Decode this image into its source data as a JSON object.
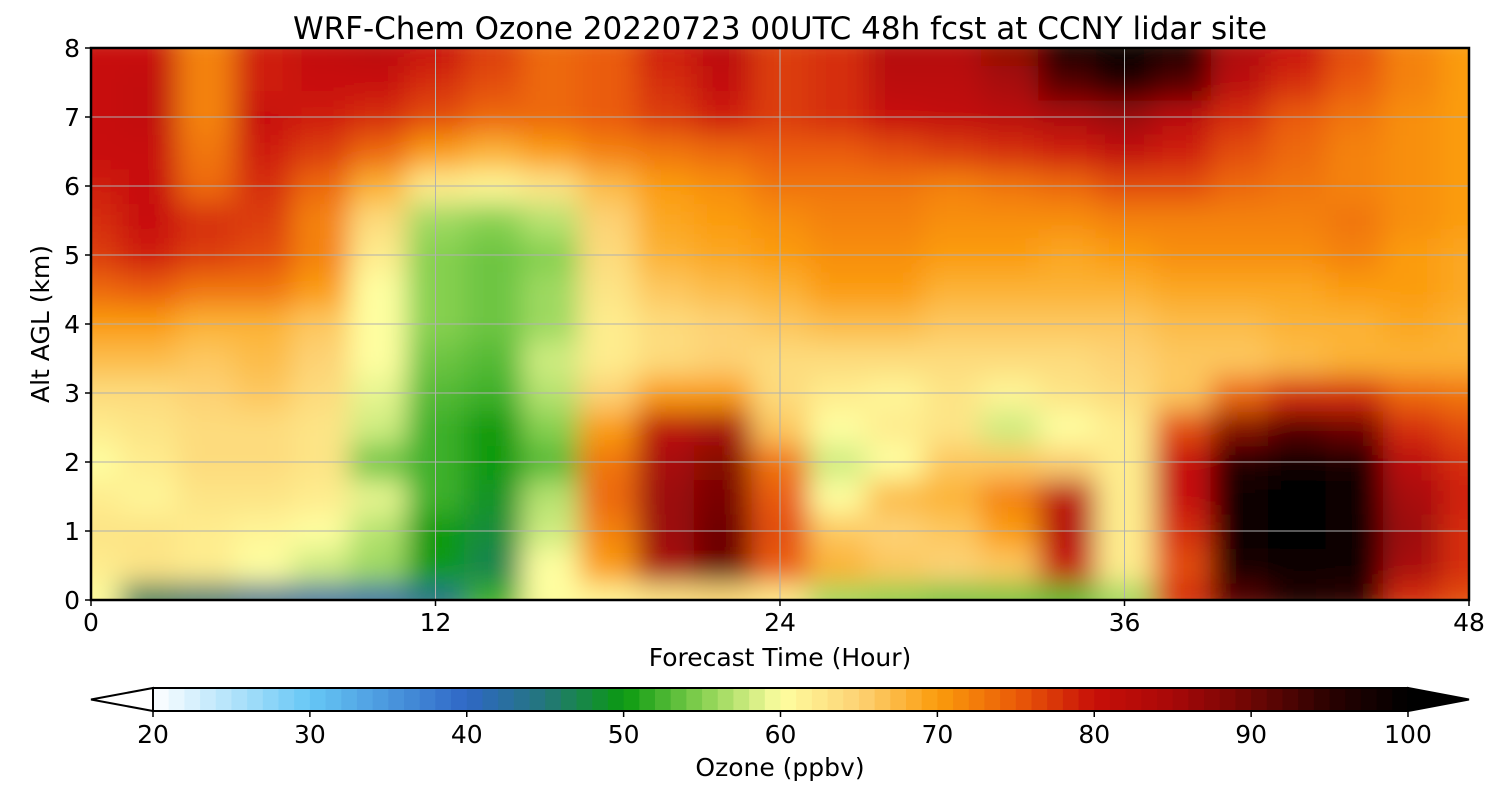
{
  "chart_data": {
    "type": "heatmap",
    "title": "WRF-Chem Ozone  20220723 00UTC 48h fcst at CCNY lidar site",
    "xlabel": "Forecast Time (Hour)",
    "ylabel": "Alt AGL (km)",
    "xlim": [
      0,
      48
    ],
    "ylim": [
      0,
      8
    ],
    "xticks": [
      "0",
      "12",
      "24",
      "36",
      "48"
    ],
    "yticks": [
      "0",
      "1",
      "2",
      "3",
      "4",
      "5",
      "6",
      "7",
      "8"
    ],
    "grid": true,
    "colorbar": {
      "label": "Ozone  (ppbv)",
      "range": [
        20,
        100
      ],
      "ticks": [
        "20",
        "30",
        "40",
        "50",
        "60",
        "70",
        "80",
        "90",
        "100"
      ],
      "extend": "both",
      "colors": [
        {
          "v": 20,
          "c": "#ffffff"
        },
        {
          "v": 30,
          "c": "#66c7f5"
        },
        {
          "v": 40,
          "c": "#2f67c6"
        },
        {
          "v": 45,
          "c": "#23767a"
        },
        {
          "v": 50,
          "c": "#0a9a10"
        },
        {
          "v": 55,
          "c": "#86d050"
        },
        {
          "v": 60,
          "c": "#fefea0"
        },
        {
          "v": 65,
          "c": "#fdd274"
        },
        {
          "v": 70,
          "c": "#fb9c0c"
        },
        {
          "v": 75,
          "c": "#ea5c08"
        },
        {
          "v": 80,
          "c": "#c80f08"
        },
        {
          "v": 85,
          "c": "#a80808"
        },
        {
          "v": 90,
          "c": "#6d0604"
        },
        {
          "v": 95,
          "c": "#2a0101"
        },
        {
          "v": 100,
          "c": "#000000"
        }
      ]
    },
    "x_hours": [
      0,
      2,
      4,
      6,
      8,
      10,
      12,
      14,
      16,
      18,
      20,
      22,
      24,
      26,
      28,
      30,
      32,
      34,
      36,
      38,
      40,
      42,
      44,
      46,
      48
    ],
    "y_km": [
      0,
      0.5,
      1,
      1.5,
      2,
      2.5,
      3,
      3.5,
      4,
      4.5,
      5,
      5.5,
      6,
      6.5,
      7,
      7.5,
      8
    ],
    "ozone_ppbv": [
      [
        60,
        46,
        45,
        43,
        42,
        42,
        44,
        52,
        60,
        61,
        63,
        64,
        62,
        56,
        55,
        54,
        54,
        53,
        56,
        78,
        92,
        96,
        95,
        78,
        76
      ],
      [
        62,
        63,
        62,
        60,
        58,
        56,
        50,
        47,
        60,
        70,
        85,
        90,
        75,
        68,
        66,
        65,
        66,
        80,
        62,
        76,
        97,
        99,
        98,
        85,
        78
      ],
      [
        63,
        63,
        62,
        61,
        60,
        57,
        50,
        48,
        58,
        72,
        86,
        90,
        76,
        66,
        65,
        66,
        70,
        83,
        62,
        78,
        98,
        100,
        99,
        86,
        78
      ],
      [
        62,
        61,
        63,
        63,
        62,
        59,
        52,
        49,
        57,
        74,
        86,
        89,
        75,
        60,
        67,
        68,
        72,
        82,
        62,
        80,
        99,
        100,
        98,
        85,
        79
      ],
      [
        60,
        62,
        64,
        64,
        63,
        54,
        52,
        50,
        53,
        73,
        85,
        88,
        73,
        58,
        60,
        66,
        66,
        65,
        62,
        80,
        96,
        99,
        97,
        82,
        78
      ],
      [
        62,
        63,
        64,
        64,
        63,
        58,
        52,
        50,
        55,
        70,
        82,
        85,
        66,
        60,
        62,
        63,
        58,
        60,
        62,
        76,
        88,
        92,
        90,
        78,
        76
      ],
      [
        64,
        64,
        65,
        66,
        64,
        59,
        53,
        52,
        57,
        65,
        70,
        70,
        64,
        62,
        61,
        63,
        61,
        63,
        64,
        66,
        74,
        78,
        78,
        74,
        73
      ],
      [
        67,
        67,
        66,
        67,
        65,
        60,
        54,
        53,
        58,
        62,
        64,
        65,
        64,
        64,
        64,
        64,
        64,
        64,
        65,
        66,
        66,
        67,
        68,
        68,
        68
      ],
      [
        70,
        70,
        68,
        68,
        66,
        60,
        55,
        54,
        56,
        62,
        64,
        65,
        66,
        67,
        67,
        66,
        66,
        66,
        66,
        67,
        67,
        68,
        68,
        69,
        68
      ],
      [
        74,
        75,
        73,
        73,
        70,
        60,
        55,
        54,
        56,
        63,
        66,
        67,
        68,
        70,
        70,
        68,
        68,
        68,
        68,
        69,
        69,
        69,
        70,
        70,
        69
      ],
      [
        77,
        79,
        77,
        76,
        72,
        62,
        55,
        54,
        55,
        64,
        68,
        69,
        70,
        71,
        71,
        70,
        70,
        69,
        70,
        71,
        71,
        71,
        72,
        70,
        69
      ],
      [
        78,
        80,
        78,
        77,
        72,
        64,
        56,
        55,
        57,
        65,
        69,
        70,
        71,
        72,
        72,
        71,
        71,
        71,
        72,
        72,
        72,
        72,
        73,
        71,
        70
      ],
      [
        79,
        80,
        74,
        78,
        74,
        68,
        62,
        61,
        63,
        67,
        70,
        71,
        73,
        73,
        73,
        72,
        73,
        74,
        76,
        76,
        74,
        73,
        72,
        71,
        70
      ],
      [
        80,
        80,
        73,
        79,
        77,
        74,
        70,
        68,
        70,
        72,
        73,
        74,
        75,
        75,
        76,
        77,
        78,
        79,
        81,
        79,
        76,
        74,
        72,
        71,
        70
      ],
      [
        80,
        81,
        72,
        80,
        79,
        78,
        76,
        74,
        74,
        75,
        77,
        79,
        77,
        78,
        80,
        81,
        82,
        84,
        86,
        82,
        78,
        75,
        73,
        71,
        70
      ],
      [
        80,
        81,
        72,
        79,
        80,
        80,
        78,
        76,
        74,
        75,
        78,
        81,
        77,
        78,
        82,
        82,
        85,
        92,
        96,
        92,
        82,
        78,
        75,
        72,
        70
      ],
      [
        80,
        80,
        72,
        79,
        81,
        82,
        80,
        77,
        74,
        75,
        79,
        82,
        77,
        78,
        83,
        83,
        87,
        98,
        100,
        97,
        84,
        80,
        76,
        72,
        70
      ]
    ]
  }
}
